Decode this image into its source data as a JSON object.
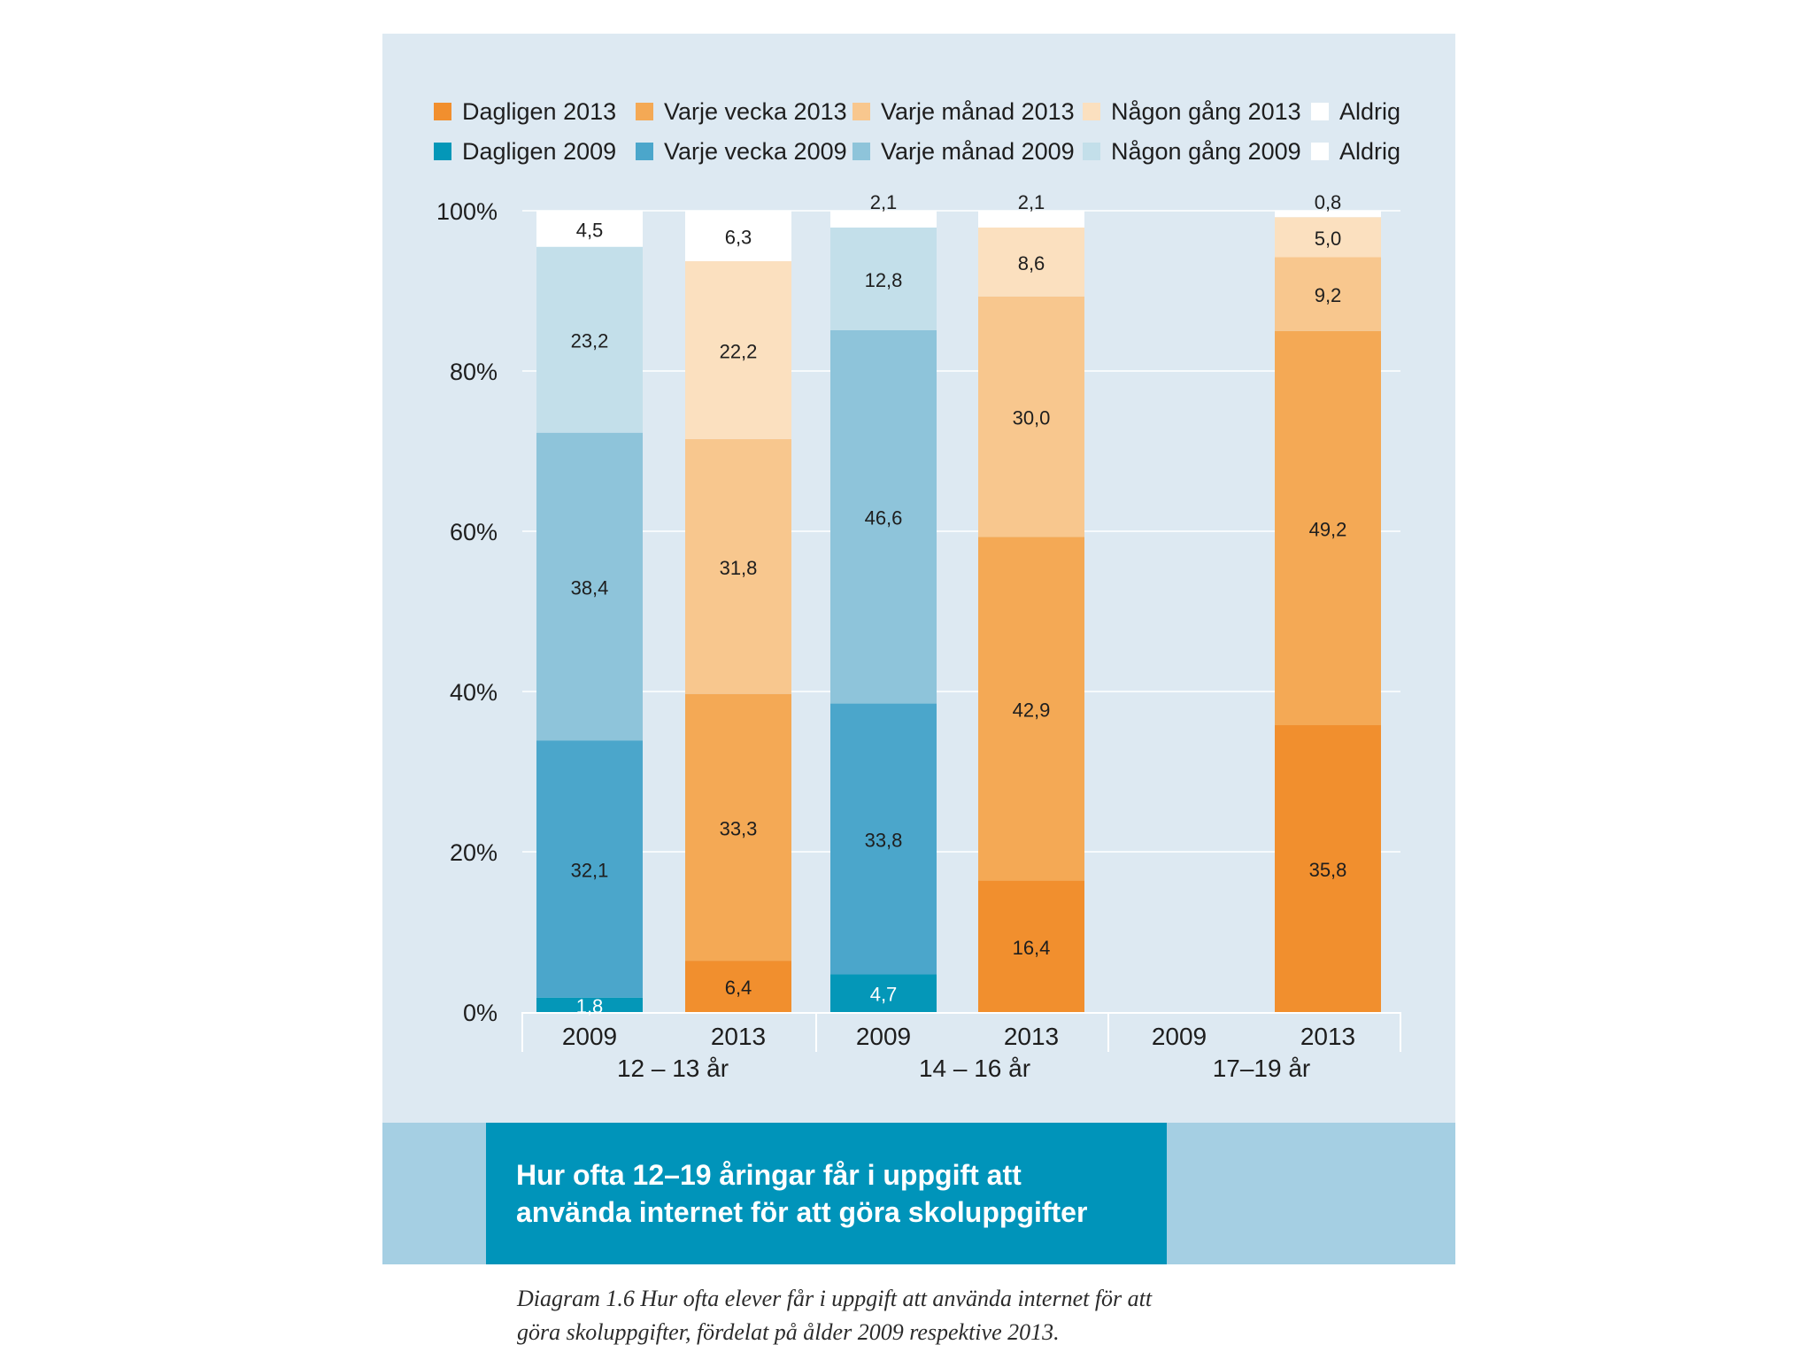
{
  "chart_data": {
    "type": "bar",
    "stacked": true,
    "title": "Hur ofta 12–19 åringar får i uppgift att använda internet för att göra skoluppgifter",
    "caption": "Diagram 1.6 Hur ofta elever får i uppgift att använda internet för att göra skoluppgifter, fördelat på ålder 2009 respektive 2013.",
    "ylim": [
      0,
      100
    ],
    "yticks": [
      "0%",
      "20%",
      "40%",
      "60%",
      "80%",
      "100%"
    ],
    "ytick_values": [
      0,
      20,
      40,
      60,
      80,
      100
    ],
    "legend_rows": [
      [
        "Dagligen 2013",
        "Varje vecka 2013",
        "Varje månad 2013",
        "Någon gång 2013",
        "Aldrig"
      ],
      [
        "Dagligen 2009",
        "Varje vecka 2009",
        "Varje månad 2009",
        "Någon gång 2009",
        "Aldrig"
      ]
    ],
    "colors": {
      "2013": [
        "#f18f2e",
        "#f4a955",
        "#f8c78e",
        "#fbe0bf",
        "#ffffff"
      ],
      "2009": [
        "#0497b8",
        "#4ba6cb",
        "#8ec4da",
        "#c3dfea",
        "#ffffff"
      ]
    },
    "groups": [
      {
        "label": "12 – 13 år",
        "bars": [
          {
            "year": "2009",
            "values": [
              1.8,
              32.1,
              38.4,
              23.2,
              4.5
            ],
            "labels": [
              "1,8",
              "32,1",
              "38,4",
              "23,2",
              "4,5"
            ]
          },
          {
            "year": "2013",
            "values": [
              6.4,
              33.3,
              31.8,
              22.2,
              6.3
            ],
            "labels": [
              "6,4",
              "33,3",
              "31,8",
              "22,2",
              "6,3"
            ]
          }
        ]
      },
      {
        "label": "14 – 16 år",
        "bars": [
          {
            "year": "2009",
            "values": [
              4.7,
              33.8,
              46.6,
              12.8,
              2.1
            ],
            "labels": [
              "4,7",
              "33,8",
              "46,6",
              "12,8",
              "2,1"
            ]
          },
          {
            "year": "2013",
            "values": [
              16.4,
              42.9,
              30.0,
              8.6,
              2.1
            ],
            "labels": [
              "16,4",
              "42,9",
              "30,0",
              "8,6",
              "2,1"
            ]
          }
        ]
      },
      {
        "label": "17–19 år",
        "bars": [
          {
            "year": "2009",
            "values": [],
            "labels": []
          },
          {
            "year": "2013",
            "values": [
              35.8,
              49.2,
              9.2,
              5.0,
              0.8
            ],
            "labels": [
              "35,8",
              "49,2",
              "9,2",
              "5,0",
              "0,8"
            ]
          }
        ]
      }
    ]
  }
}
